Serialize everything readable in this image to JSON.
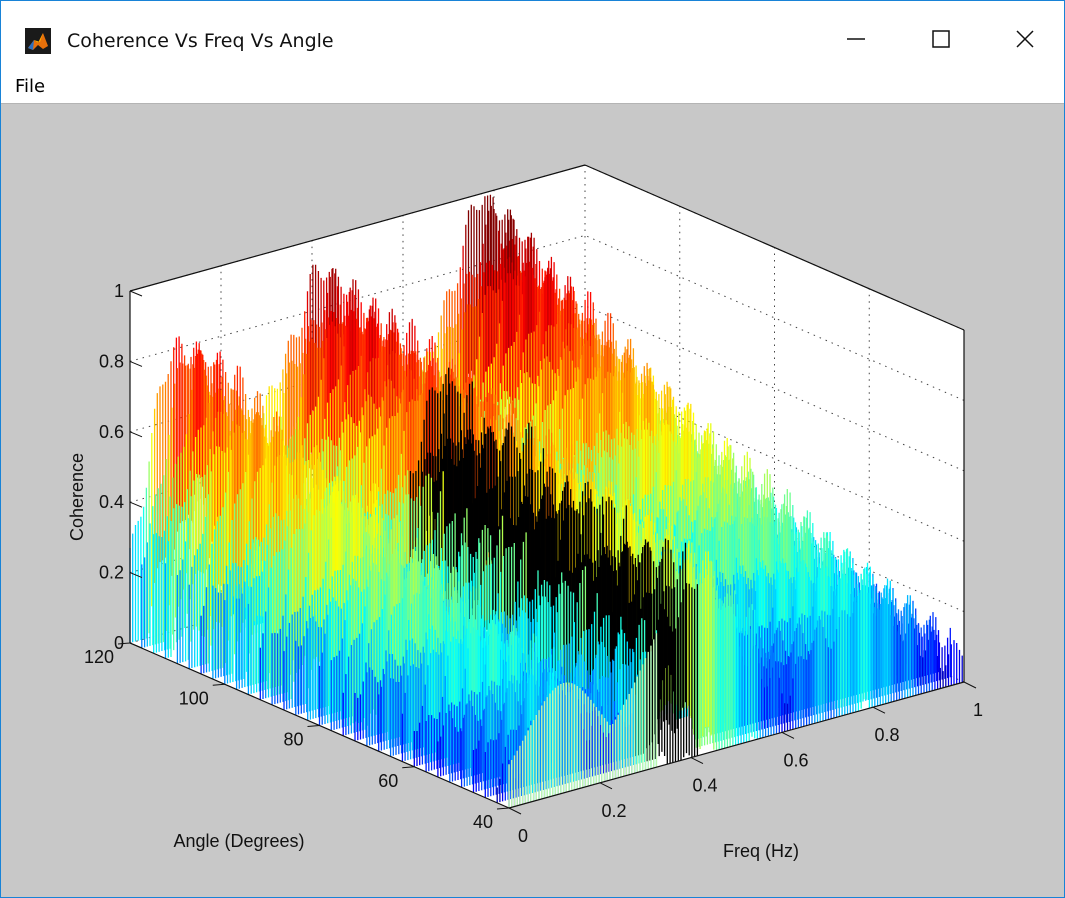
{
  "window": {
    "title": "Coherence Vs Freq Vs Angle",
    "icon": "matlab-icon",
    "controls": [
      "minimize-icon",
      "maximize-icon",
      "close-icon"
    ]
  },
  "menu": {
    "items": [
      {
        "label": "File"
      }
    ]
  },
  "chart_data": {
    "type": "surface",
    "xlabel": "Freq (Hz)",
    "ylabel": "Angle (Degrees)",
    "zlabel": "Coherence",
    "xlim": [
      0,
      1
    ],
    "ylim": [
      40,
      120
    ],
    "zlim": [
      0,
      1
    ],
    "x_ticks": [
      "0",
      "0.2",
      "0.4",
      "0.6",
      "0.8",
      "1"
    ],
    "y_ticks": [
      "40",
      "60",
      "80",
      "100",
      "120"
    ],
    "z_ticks": [
      "0",
      "0.2",
      "0.4",
      "0.6",
      "0.8",
      "1"
    ],
    "grid": true,
    "colormap": "jet",
    "colors": {
      "background": "#c8c8c8",
      "axes_face": "#ffffff",
      "window_border": "#1883d7"
    }
  }
}
